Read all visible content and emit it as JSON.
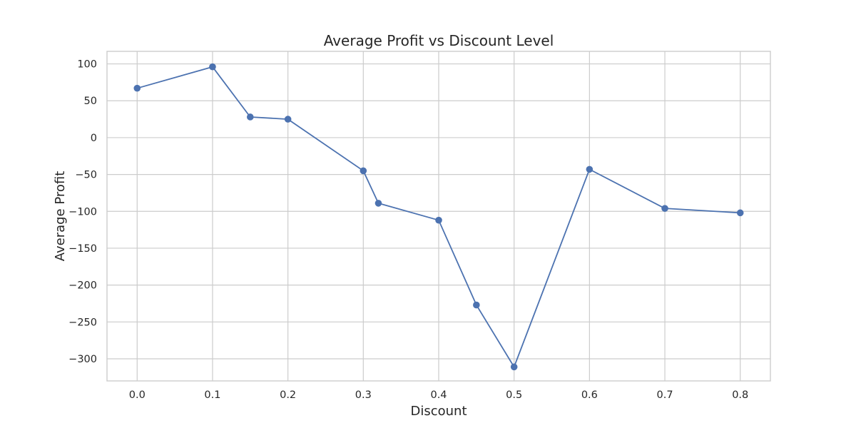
{
  "chart_data": {
    "type": "line",
    "title": "Average Profit vs Discount Level",
    "xlabel": "Discount",
    "ylabel": "Average Profit",
    "xlim": [
      -0.04,
      0.84
    ],
    "ylim": [
      -330,
      117
    ],
    "xticks": [
      0.0,
      0.1,
      0.2,
      0.3,
      0.4,
      0.5,
      0.6,
      0.7,
      0.8
    ],
    "xtick_labels": [
      "0.0",
      "0.1",
      "0.2",
      "0.3",
      "0.4",
      "0.5",
      "0.6",
      "0.7",
      "0.8"
    ],
    "yticks": [
      100,
      50,
      0,
      -50,
      -100,
      -150,
      -200,
      -250,
      -300
    ],
    "ytick_labels": [
      "100",
      "50",
      "0",
      "−50",
      "−100",
      "−150",
      "−200",
      "−250",
      "−300"
    ],
    "grid": true,
    "legend": "none",
    "series": [
      {
        "color": "#4c72b0",
        "marker": "circle",
        "x": [
          0.0,
          0.1,
          0.15,
          0.2,
          0.3,
          0.32,
          0.4,
          0.45,
          0.5,
          0.6,
          0.7,
          0.8
        ],
        "y": [
          67,
          96,
          28,
          25,
          -45,
          -89,
          -112,
          -227,
          -311,
          -43,
          -96,
          -102
        ]
      }
    ]
  }
}
